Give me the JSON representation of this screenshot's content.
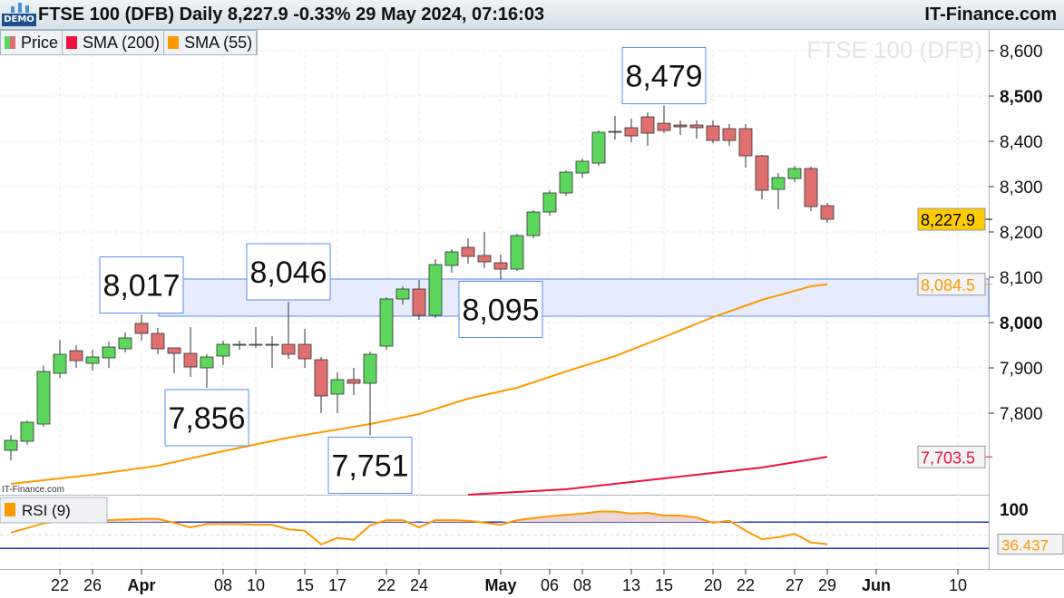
{
  "header": {
    "title": "FTSE 100 (DFB) Daily 8,227.9 -0.33% 29 May 2024, 07:16:03",
    "site": "IT-Finance.com",
    "badge": "DEMO"
  },
  "legend": [
    {
      "label": "Price",
      "color": "#5cd65c"
    },
    {
      "label": "SMA (200)",
      "color": "#f0113c"
    },
    {
      "label": "SMA (55)",
      "color": "#ff9900"
    }
  ],
  "watermark": "FTSE 100 (DFB)",
  "panel_source": "IT-Finance.com",
  "rsi_label": "RSI (9)",
  "chart_data": [
    {
      "type": "candlestick",
      "title": "FTSE 100 (DFB) Daily",
      "ylim": [
        7620,
        8640
      ],
      "yticks": [
        "8,600",
        "8,500",
        "8,400",
        "8,300",
        "8,200",
        "8,100",
        "8,000",
        "7,900",
        "7,800"
      ],
      "ytick_values": [
        8600,
        8500,
        8400,
        8300,
        8200,
        8100,
        8000,
        7900,
        7800
      ],
      "colors": {
        "up": "#5cd65c",
        "down": "#e07070"
      },
      "ohlc": [
        [
          7718,
          7752,
          7696,
          7740
        ],
        [
          7738,
          7784,
          7730,
          7780
        ],
        [
          7776,
          7905,
          7770,
          7892
        ],
        [
          7888,
          7962,
          7878,
          7930
        ],
        [
          7938,
          7950,
          7900,
          7916
        ],
        [
          7910,
          7940,
          7894,
          7924
        ],
        [
          7922,
          7958,
          7900,
          7946
        ],
        [
          7942,
          7978,
          7934,
          7966
        ],
        [
          7998,
          8017,
          7960,
          7976
        ],
        [
          7976,
          7988,
          7930,
          7942
        ],
        [
          7944,
          7944,
          7888,
          7932
        ],
        [
          7932,
          7990,
          7880,
          7902
        ],
        [
          7900,
          7930,
          7856,
          7924
        ],
        [
          7926,
          7960,
          7906,
          7952
        ],
        [
          7952,
          7960,
          7940,
          7952
        ],
        [
          7952,
          7990,
          7944,
          7952
        ],
        [
          7952,
          7970,
          7900,
          7952
        ],
        [
          7952,
          8046,
          7920,
          7930
        ],
        [
          7952,
          7986,
          7900,
          7920
        ],
        [
          7918,
          7924,
          7800,
          7838
        ],
        [
          7842,
          7890,
          7800,
          7874
        ],
        [
          7874,
          7900,
          7840,
          7866
        ],
        [
          7866,
          7936,
          7751,
          7930
        ],
        [
          7948,
          8056,
          7940,
          8052
        ],
        [
          8052,
          8080,
          8040,
          8074
        ],
        [
          8074,
          8094,
          8006,
          8016
        ],
        [
          8016,
          8140,
          8010,
          8128
        ],
        [
          8126,
          8162,
          8110,
          8156
        ],
        [
          8166,
          8186,
          8130,
          8146
        ],
        [
          8148,
          8200,
          8120,
          8134
        ],
        [
          8132,
          8150,
          8095,
          8118
        ],
        [
          8118,
          8196,
          8114,
          8192
        ],
        [
          8192,
          8248,
          8186,
          8244
        ],
        [
          8244,
          8292,
          8236,
          8286
        ],
        [
          8286,
          8336,
          8280,
          8332
        ],
        [
          8330,
          8362,
          8320,
          8356
        ],
        [
          8352,
          8424,
          8346,
          8420
        ],
        [
          8422,
          8456,
          8404,
          8420
        ],
        [
          8430,
          8450,
          8398,
          8412
        ],
        [
          8454,
          8464,
          8390,
          8418
        ],
        [
          8440,
          8479,
          8418,
          8424
        ],
        [
          8436,
          8446,
          8414,
          8432
        ],
        [
          8436,
          8446,
          8406,
          8430
        ],
        [
          8434,
          8446,
          8396,
          8402
        ],
        [
          8428,
          8438,
          8390,
          8402
        ],
        [
          8428,
          8438,
          8342,
          8368
        ],
        [
          8368,
          8370,
          8272,
          8292
        ],
        [
          8294,
          8330,
          8250,
          8320
        ],
        [
          8318,
          8346,
          8310,
          8340
        ],
        [
          8340,
          8344,
          8246,
          8256
        ],
        [
          8258,
          8264,
          8220,
          8228
        ]
      ],
      "series": [
        {
          "name": "SMA (55)",
          "color": "#ff9900",
          "points": [
            [
              0,
              7644
            ],
            [
              5,
              7664
            ],
            [
              9,
              7684
            ],
            [
              13,
              7716
            ],
            [
              17,
              7746
            ],
            [
              22,
              7776
            ],
            [
              25,
              7798
            ],
            [
              28,
              7832
            ],
            [
              31,
              7856
            ],
            [
              34,
              7892
            ],
            [
              37,
              7926
            ],
            [
              40,
              7968
            ],
            [
              43,
              8012
            ],
            [
              46,
              8050
            ],
            [
              49,
              8080
            ],
            [
              50,
              8084.5
            ]
          ]
        },
        {
          "name": "SMA (200)",
          "color": "#f0113c",
          "points": [
            [
              28,
              7620
            ],
            [
              34,
              7632
            ],
            [
              40,
              7656
            ],
            [
              46,
              7680
            ],
            [
              50,
              7703.5
            ]
          ]
        }
      ],
      "last_labels": [
        {
          "text": "8,227.9",
          "value": 8227.9,
          "bg": "#ffcc00",
          "fg": "#000"
        },
        {
          "text": "8,084.5",
          "value": 8084.5,
          "bg": "#f2f4f5",
          "fg": "#ff9900"
        },
        {
          "text": "7,703.5",
          "value": 7703.5,
          "bg": "#f2f4f5",
          "fg": "#f0113c"
        }
      ],
      "zone": [
        8014,
        8096
      ],
      "annotations": [
        {
          "text": "8,017",
          "index": 8,
          "value": 8017,
          "pos": "above"
        },
        {
          "text": "8,046",
          "index": 17,
          "value": 8046,
          "pos": "above"
        },
        {
          "text": "8,479",
          "index": 40,
          "value": 8479,
          "pos": "above"
        },
        {
          "text": "8,095",
          "index": 30,
          "value": 8095,
          "pos": "below"
        },
        {
          "text": "7,856",
          "index": 12,
          "value": 7856,
          "pos": "below"
        },
        {
          "text": "7,751",
          "index": 22,
          "value": 7751,
          "pos": "below"
        }
      ]
    },
    {
      "type": "line",
      "title": "RSI (9)",
      "ylim": [
        0,
        100
      ],
      "yticks": [
        "100"
      ],
      "levels": [
        70,
        30
      ],
      "last": "36.437",
      "color": "#ff9900",
      "values": [
        54,
        61,
        68,
        71,
        72,
        72,
        73,
        74,
        75,
        75,
        69,
        62,
        67,
        67,
        67,
        66,
        66,
        59,
        57,
        36,
        46,
        43,
        65,
        73,
        73,
        62,
        73,
        73,
        72,
        69,
        66,
        73,
        76,
        79,
        81,
        83,
        86,
        86,
        83,
        84,
        80,
        80,
        77,
        69,
        72,
        57,
        44,
        47,
        52,
        39,
        36.437
      ]
    }
  ],
  "xaxis": {
    "ticks": [
      {
        "label": "22",
        "i": 3
      },
      {
        "label": "26",
        "i": 5
      },
      {
        "label": "Apr",
        "i": 8,
        "bold": true
      },
      {
        "label": "08",
        "i": 13
      },
      {
        "label": "10",
        "i": 15
      },
      {
        "label": "15",
        "i": 18
      },
      {
        "label": "17",
        "i": 20
      },
      {
        "label": "22",
        "i": 23
      },
      {
        "label": "24",
        "i": 25
      },
      {
        "label": "May",
        "i": 30,
        "bold": true
      },
      {
        "label": "06",
        "i": 33
      },
      {
        "label": "08",
        "i": 35
      },
      {
        "label": "13",
        "i": 38
      },
      {
        "label": "15",
        "i": 40
      },
      {
        "label": "20",
        "i": 43
      },
      {
        "label": "22",
        "i": 45
      },
      {
        "label": "27",
        "i": 48
      },
      {
        "label": "29",
        "i": 50
      },
      {
        "label": "Jun",
        "i": 53,
        "bold": true
      },
      {
        "label": "10",
        "i": 58
      }
    ]
  }
}
